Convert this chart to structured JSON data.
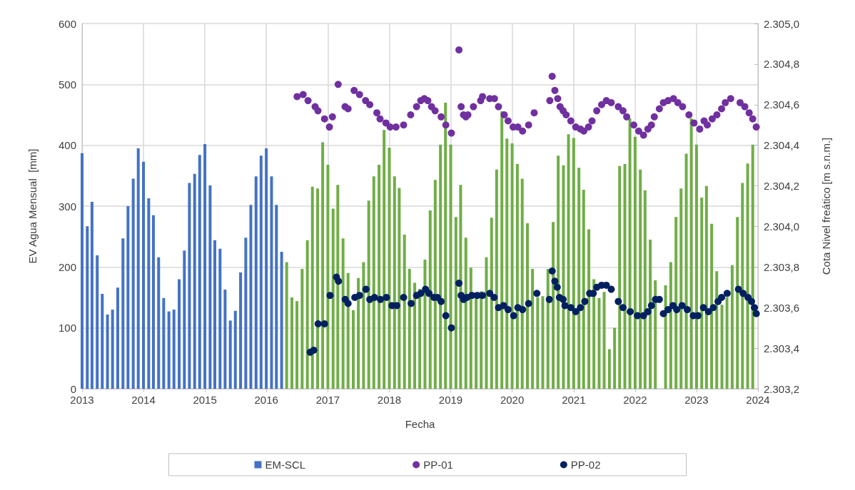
{
  "chart_data": {
    "type": "bar",
    "xlabel": "Fecha",
    "ylabel": "EV Agua Mensual  [mm]",
    "y2label": "Cota Nivel freático [m s.n.m.]",
    "xlim": [
      "2013",
      "2024"
    ],
    "xticks": [
      "2013",
      "2014",
      "2015",
      "2016",
      "2017",
      "2018",
      "2019",
      "2020",
      "2021",
      "2022",
      "2023",
      "2024"
    ],
    "ylim": [
      0,
      600
    ],
    "yticks": [
      0,
      100,
      200,
      300,
      400,
      500,
      600
    ],
    "y2lim": [
      2303.2,
      2305.0
    ],
    "y2ticks": [
      {
        "value": 2303.2,
        "label": "2.303,2"
      },
      {
        "value": 2303.4,
        "label": "2.303,4"
      },
      {
        "value": 2303.6,
        "label": "2.303,6"
      },
      {
        "value": 2303.8,
        "label": "2.303,8"
      },
      {
        "value": 2304.0,
        "label": "2.304,0"
      },
      {
        "value": 2304.2,
        "label": "2.304,2"
      },
      {
        "value": 2304.4,
        "label": "2.304,4"
      },
      {
        "value": 2304.6,
        "label": "2.304,6"
      },
      {
        "value": 2304.8,
        "label": "2.304,8"
      },
      {
        "value": 2305.0,
        "label": "2.305,0"
      }
    ],
    "grid": true,
    "legend": "bottom",
    "marker": "circle",
    "series": [
      {
        "name": "EM-SCL",
        "color": "#4472c4",
        "x": [
          "2013-01",
          "2013-02",
          "2013-03",
          "2013-04",
          "2013-05",
          "2013-06",
          "2013-07",
          "2013-08",
          "2013-09",
          "2013-10",
          "2013-11",
          "2013-12",
          "2014-01",
          "2014-02",
          "2014-03",
          "2014-04",
          "2014-05",
          "2014-06",
          "2014-07",
          "2014-08",
          "2014-09",
          "2014-10",
          "2014-11",
          "2014-12",
          "2015-01",
          "2015-02",
          "2015-03",
          "2015-04",
          "2015-05",
          "2015-06",
          "2015-07",
          "2015-08",
          "2015-09",
          "2015-10",
          "2015-11",
          "2015-12",
          "2016-01",
          "2016-02",
          "2016-03",
          "2016-04"
        ],
        "values": [
          387,
          267,
          307,
          219,
          156,
          122,
          130,
          166,
          247,
          300,
          345,
          395,
          373,
          313,
          285,
          216,
          149,
          127,
          130,
          180,
          227,
          338,
          353,
          384,
          402,
          334,
          244,
          230,
          163,
          112,
          128,
          191,
          248,
          302,
          349,
          383,
          395,
          349,
          302,
          225
        ]
      },
      {
        "color": "#70ad47",
        "x": [
          "2016-05",
          "2016-06",
          "2016-07",
          "2016-08",
          "2016-09",
          "2016-10",
          "2016-11",
          "2016-12",
          "2017-01",
          "2017-02",
          "2017-03",
          "2017-04",
          "2017-05",
          "2017-06",
          "2017-07",
          "2017-08",
          "2017-09",
          "2017-10",
          "2017-11",
          "2017-12",
          "2018-01",
          "2018-02",
          "2018-03",
          "2018-04",
          "2018-05",
          "2018-06",
          "2018-07",
          "2018-08",
          "2018-09",
          "2018-10",
          "2018-11",
          "2018-12",
          "2019-01",
          "2019-02",
          "2019-03",
          "2019-04",
          "2019-05",
          "2019-06",
          "2019-07",
          "2019-08",
          "2019-09",
          "2019-10",
          "2019-11",
          "2019-12",
          "2020-01",
          "2020-02",
          "2020-03",
          "2020-04",
          "2020-05",
          "2020-06",
          "2020-07",
          "2020-08",
          "2020-09",
          "2020-10",
          "2020-11",
          "2020-12",
          "2021-01",
          "2021-02",
          "2021-03",
          "2021-04",
          "2021-05",
          "2021-06",
          "2021-07",
          "2021-08",
          "2021-09",
          "2021-10",
          "2021-11",
          "2021-12",
          "2022-01",
          "2022-02",
          "2022-03",
          "2022-04",
          "2022-05",
          "2022-06",
          "2022-07",
          "2022-08",
          "2022-09",
          "2022-10",
          "2022-11",
          "2022-12",
          "2023-01",
          "2023-02",
          "2023-03",
          "2023-04",
          "2023-05",
          "2023-06",
          "2023-07",
          "2023-08",
          "2023-09",
          "2023-10",
          "2023-11",
          "2023-12"
        ],
        "values": [
          208,
          150,
          144,
          197,
          244,
          332,
          329,
          405,
          368,
          296,
          335,
          247,
          190,
          129,
          182,
          208,
          309,
          349,
          368,
          425,
          396,
          349,
          330,
          253,
          197,
          174,
          164,
          212,
          293,
          343,
          401,
          470,
          401,
          282,
          335,
          248,
          199,
          150,
          160,
          216,
          281,
          360,
          456,
          411,
          403,
          369,
          345,
          272,
          197,
          150,
          152,
          197,
          274,
          383,
          367,
          418,
          412,
          363,
          327,
          262,
          180,
          149,
          159,
          65,
          100,
          366,
          369,
          444,
          414,
          360,
          326,
          245,
          178,
          null,
          170,
          208,
          282,
          329,
          386,
          444,
          401,
          314,
          333,
          271,
          193,
          138,
          150,
          203,
          282,
          338,
          370,
          401
        ]
      },
      {
        "name": "PP-01",
        "type": "scatter",
        "axis": "y2",
        "color": "#7030a0",
        "x": [
          "2016-07-02",
          "2016-08-07",
          "2016-09-05",
          "2016-10-17",
          "2016-11-03",
          "2016-12-12",
          "2017-01-10",
          "2017-01-28",
          "2017-03-03",
          "2017-04-13",
          "2017-05-01",
          "2017-06-06",
          "2017-07-08",
          "2017-08-13",
          "2017-09-07",
          "2017-10-19",
          "2017-11-07",
          "2017-12-12",
          "2018-01-06",
          "2018-02-10",
          "2018-03-27",
          "2018-05-08",
          "2018-06-12",
          "2018-07-07",
          "2018-07-28",
          "2018-08-18",
          "2018-09-09",
          "2018-09-30",
          "2018-11-05",
          "2018-12-03",
          "2019-01-05",
          "2019-02-19",
          "2019-03-04",
          "2019-03-18",
          "2019-04-01",
          "2019-04-13",
          "2019-05-16",
          "2019-06-28",
          "2019-07-09",
          "2019-08-21",
          "2019-09-18",
          "2019-10-12",
          "2019-11-15",
          "2019-12-08",
          "2020-01-07",
          "2020-02-04",
          "2020-03-03",
          "2020-04-08",
          "2020-05-11",
          "2020-08-12",
          "2020-08-26",
          "2020-09-11",
          "2020-09-28",
          "2020-10-12",
          "2020-10-30",
          "2020-11-17",
          "2020-12-15",
          "2021-01-13",
          "2021-02-10",
          "2021-03-02",
          "2021-03-30",
          "2021-04-20",
          "2021-05-18",
          "2021-06-16",
          "2021-07-14",
          "2021-08-12",
          "2021-09-23",
          "2021-10-21",
          "2021-11-12",
          "2021-12-24",
          "2022-01-22",
          "2022-02-20",
          "2022-03-18",
          "2022-04-08",
          "2022-04-25",
          "2022-05-25",
          "2022-06-18",
          "2022-07-16",
          "2022-08-17",
          "2022-09-12",
          "2022-10-10",
          "2022-11-17",
          "2022-12-17",
          "2023-01-20",
          "2023-02-15",
          "2023-03-06",
          "2023-04-04",
          "2023-05-02",
          "2023-05-30",
          "2023-06-21",
          "2023-07-23",
          "2023-09-17",
          "2023-10-15",
          "2023-11-10",
          "2023-12-01",
          "2023-12-22"
        ],
        "values": [
          2304.64,
          2304.65,
          2304.62,
          2304.59,
          2304.57,
          2304.53,
          2304.49,
          2304.54,
          2304.7,
          2304.59,
          2304.58,
          2304.67,
          2304.65,
          2304.62,
          2304.6,
          2304.56,
          2304.53,
          2304.51,
          2304.49,
          2304.49,
          2304.5,
          2304.55,
          2304.59,
          2304.62,
          2304.63,
          2304.62,
          2304.59,
          2304.57,
          2304.54,
          2304.5,
          2304.46,
          2304.87,
          2304.59,
          2304.55,
          2304.54,
          2304.55,
          2304.59,
          2304.62,
          2304.64,
          2304.63,
          2304.63,
          2304.59,
          2304.55,
          2304.52,
          2304.49,
          2304.49,
          2304.47,
          2304.5,
          2304.56,
          2304.62,
          2304.74,
          2304.67,
          2304.63,
          2304.59,
          2304.57,
          2304.55,
          2304.52,
          2304.49,
          2304.48,
          2304.47,
          2304.49,
          2304.52,
          2304.57,
          2304.6,
          2304.62,
          2304.61,
          2304.59,
          2304.57,
          2304.54,
          2304.5,
          2304.47,
          2304.45,
          2304.48,
          2304.5,
          2304.54,
          2304.58,
          2304.61,
          2304.62,
          2304.63,
          2304.61,
          2304.59,
          2304.55,
          2304.51,
          2304.48,
          2304.52,
          2304.5,
          2304.53,
          2304.55,
          2304.58,
          2304.61,
          2304.63,
          2304.61,
          2304.59,
          2304.56,
          2304.53,
          2304.49
        ]
      },
      {
        "name": "PP-02",
        "type": "scatter",
        "axis": "y2",
        "color": "#002060",
        "x": [
          "2016-09-18",
          "2016-10-09",
          "2016-11-04",
          "2016-12-12",
          "2017-01-14",
          "2017-02-21",
          "2017-03-05",
          "2017-04-14",
          "2017-05-01",
          "2017-06-10",
          "2017-07-08",
          "2017-08-15",
          "2017-09-07",
          "2017-10-05",
          "2017-11-09",
          "2017-12-15",
          "2018-01-17",
          "2018-02-14",
          "2018-03-27",
          "2018-05-11",
          "2018-06-12",
          "2018-07-07",
          "2018-08-04",
          "2018-08-25",
          "2018-09-23",
          "2018-10-14",
          "2018-11-05",
          "2018-12-03",
          "2019-01-05",
          "2019-02-19",
          "2019-03-04",
          "2019-03-18",
          "2019-04-08",
          "2019-05-07",
          "2019-06-08",
          "2019-07-09",
          "2019-08-21",
          "2019-09-16",
          "2019-10-12",
          "2019-11-11",
          "2019-12-08",
          "2020-01-10",
          "2020-02-04",
          "2020-03-03",
          "2020-04-08",
          "2020-05-27",
          "2020-08-09",
          "2020-08-26",
          "2020-09-11",
          "2020-09-25",
          "2020-10-08",
          "2020-10-30",
          "2020-11-10",
          "2020-12-15",
          "2021-01-13",
          "2021-02-10",
          "2021-03-08",
          "2021-04-06",
          "2021-04-27",
          "2021-05-18",
          "2021-06-16",
          "2021-07-14",
          "2021-08-12",
          "2021-09-23",
          "2021-10-21",
          "2021-12-03",
          "2022-01-15",
          "2022-02-20",
          "2022-03-18",
          "2022-04-08",
          "2022-05-02",
          "2022-05-25",
          "2022-06-18",
          "2022-07-16",
          "2022-08-14",
          "2022-09-05",
          "2022-10-07",
          "2022-11-07",
          "2022-12-13",
          "2023-01-10",
          "2023-02-11",
          "2023-03-13",
          "2023-04-11",
          "2023-05-09",
          "2023-05-30",
          "2023-07-02",
          "2023-09-07",
          "2023-10-05",
          "2023-11-03",
          "2023-11-24",
          "2023-12-11",
          "2023-12-22"
        ],
        "values": [
          2303.38,
          2303.39,
          2303.52,
          2303.52,
          2303.66,
          2303.75,
          2303.73,
          2303.64,
          2303.62,
          2303.65,
          2303.66,
          2303.69,
          2303.64,
          2303.65,
          2303.64,
          2303.65,
          2303.61,
          2303.61,
          2303.65,
          2303.62,
          2303.66,
          2303.67,
          2303.69,
          2303.67,
          2303.65,
          2303.65,
          2303.63,
          2303.56,
          2303.5,
          2303.72,
          2303.66,
          2303.64,
          2303.65,
          2303.66,
          2303.66,
          2303.66,
          2303.67,
          2303.65,
          2303.6,
          2303.61,
          2303.59,
          2303.56,
          2303.6,
          2303.59,
          2303.62,
          2303.67,
          2303.64,
          2303.78,
          2303.73,
          2303.7,
          2303.65,
          2303.64,
          2303.61,
          2303.6,
          2303.58,
          2303.6,
          2303.63,
          2303.67,
          2303.67,
          2303.7,
          2303.71,
          2303.71,
          2303.69,
          2303.63,
          2303.6,
          2303.58,
          2303.56,
          2303.56,
          2303.58,
          2303.61,
          2303.64,
          2303.64,
          2303.57,
          2303.59,
          2303.61,
          2303.59,
          2303.61,
          2303.59,
          2303.56,
          2303.56,
          2303.6,
          2303.58,
          2303.6,
          2303.63,
          2303.65,
          2303.67,
          2303.69,
          2303.67,
          2303.65,
          2303.63,
          2303.6,
          2303.57
        ]
      }
    ]
  }
}
